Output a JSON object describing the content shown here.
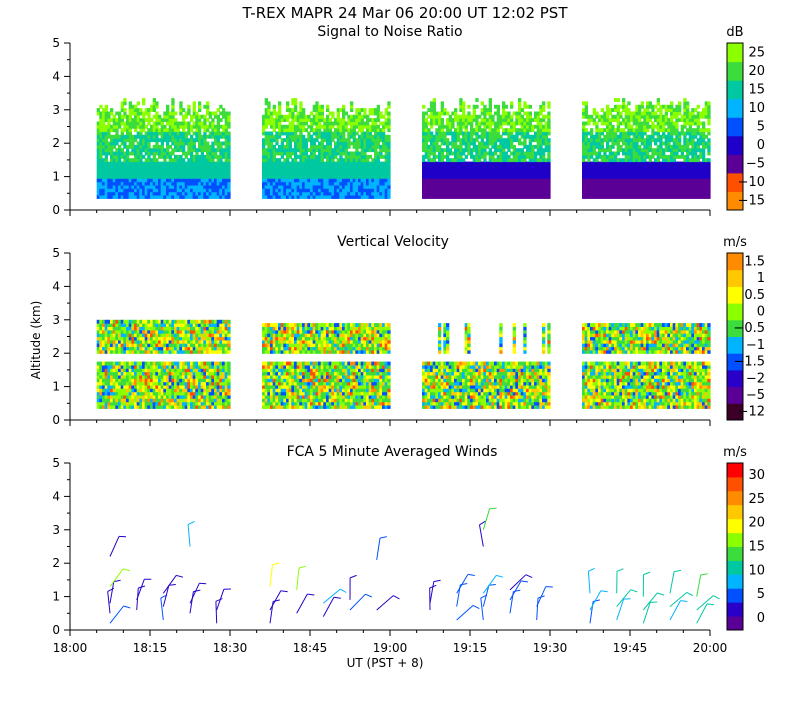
{
  "header": {
    "line1": "T-REX   MAPR 24 Mar 06   20:00 UT   12:02   PST"
  },
  "x_axis": {
    "label": "UT  (PST + 8)",
    "ticks": [
      "18:00",
      "18:15",
      "18:30",
      "18:45",
      "19:00",
      "19:15",
      "19:30",
      "19:45",
      "20:00"
    ],
    "range_minutes": [
      0,
      120
    ]
  },
  "colors": {
    "snr_scale": [
      "#8cff00",
      "#3cdc3c",
      "#00c8a0",
      "#00b4ff",
      "#0050ff",
      "#1e00c8",
      "#5a0096",
      "#ff5000",
      "#ff8c00",
      "#ffc800"
    ],
    "vv_scale": [
      "#3c0028",
      "#5a0096",
      "#2800c8",
      "#0050ff",
      "#00b4ff",
      "#3cdc3c",
      "#8cff00",
      "#ffff00",
      "#ffc800",
      "#ff8c00",
      "#ff5000",
      "#ff0000"
    ],
    "wind_scale": [
      "#5a0096",
      "#2800c8",
      "#0050ff",
      "#00b4ff",
      "#00c8a0",
      "#3cdc3c",
      "#8cff00",
      "#ffff00",
      "#ffc800",
      "#ff8c00",
      "#ff5000",
      "#ff0000"
    ]
  },
  "chart_data": [
    {
      "type": "heatmap",
      "title": "Signal to Noise Ratio",
      "ylabel": "",
      "ylim": [
        0,
        5
      ],
      "yticks": [
        "0",
        "1",
        "2",
        "3",
        "4",
        "5"
      ],
      "colorbar": {
        "unit": "dB",
        "ticks": [
          "25",
          "20",
          "15",
          "10",
          "5",
          "0",
          "−5",
          "−10",
          "−15"
        ]
      },
      "data_segments_ut": [
        [
          "18:05",
          "18:30"
        ],
        [
          "18:36",
          "19:00"
        ],
        [
          "19:06",
          "19:30"
        ],
        [
          "19:36",
          "20:00"
        ]
      ],
      "echo_top_km": 3.3
    },
    {
      "type": "heatmap",
      "title": "Vertical Velocity",
      "ylabel": "Altitude (km)",
      "ylim": [
        0,
        5
      ],
      "yticks": [
        "0",
        "1",
        "2",
        "3",
        "4",
        "5"
      ],
      "colorbar": {
        "unit": "m/s",
        "ticks": [
          "1.5",
          "1",
          "0.5",
          "0",
          "−0.5",
          "−1",
          "−1.5",
          "−2",
          "−5",
          "−12"
        ]
      },
      "data_segments_ut": [
        [
          "18:05",
          "18:30"
        ],
        [
          "18:36",
          "19:00"
        ],
        [
          "19:06",
          "19:30"
        ],
        [
          "19:36",
          "20:00"
        ]
      ]
    },
    {
      "type": "scatter",
      "title": "FCA 5 Minute Averaged Winds",
      "ylabel": "",
      "ylim": [
        0,
        5
      ],
      "yticks": [
        "0",
        "1",
        "2",
        "3",
        "4",
        "5"
      ],
      "colorbar": {
        "unit": "m/s",
        "ticks": [
          "30",
          "25",
          "20",
          "15",
          "10",
          "5",
          "0"
        ]
      },
      "barbs": [
        {
          "t": 7.5,
          "alt": 0.2,
          "speed": 5
        },
        {
          "t": 7.5,
          "alt": 0.5,
          "speed": 4
        },
        {
          "t": 7.5,
          "alt": 0.8,
          "speed": 3
        },
        {
          "t": 7.5,
          "alt": 2.2,
          "speed": 4
        },
        {
          "t": 7.5,
          "alt": 1.3,
          "speed": 15
        },
        {
          "t": 12.5,
          "alt": 0.6,
          "speed": 4
        },
        {
          "t": 12.5,
          "alt": 0.9,
          "speed": 3
        },
        {
          "t": 17.5,
          "alt": 0.3,
          "speed": 5
        },
        {
          "t": 17.5,
          "alt": 0.7,
          "speed": 4
        },
        {
          "t": 17.5,
          "alt": 1.1,
          "speed": 3
        },
        {
          "t": 22.5,
          "alt": 0.5,
          "speed": 4
        },
        {
          "t": 22.5,
          "alt": 0.8,
          "speed": 4
        },
        {
          "t": 22.5,
          "alt": 2.5,
          "speed": 9
        },
        {
          "t": 27.5,
          "alt": 0.2,
          "speed": 4
        },
        {
          "t": 27.5,
          "alt": 0.6,
          "speed": 3
        },
        {
          "t": 37.5,
          "alt": 0.2,
          "speed": 4
        },
        {
          "t": 37.5,
          "alt": 0.6,
          "speed": 4
        },
        {
          "t": 37.5,
          "alt": 1.3,
          "speed": 19
        },
        {
          "t": 42.5,
          "alt": 0.5,
          "speed": 4
        },
        {
          "t": 42.5,
          "alt": 1.2,
          "speed": 17
        },
        {
          "t": 47.5,
          "alt": 0.4,
          "speed": 4
        },
        {
          "t": 47.5,
          "alt": 0.8,
          "speed": 8
        },
        {
          "t": 52.5,
          "alt": 0.6,
          "speed": 5
        },
        {
          "t": 52.5,
          "alt": 0.9,
          "speed": 3
        },
        {
          "t": 57.5,
          "alt": 0.6,
          "speed": 4
        },
        {
          "t": 57.5,
          "alt": 2.1,
          "speed": 5
        },
        {
          "t": 67.5,
          "alt": 0.6,
          "speed": 4
        },
        {
          "t": 67.5,
          "alt": 0.8,
          "speed": 3
        },
        {
          "t": 72.5,
          "alt": 0.3,
          "speed": 5
        },
        {
          "t": 72.5,
          "alt": 0.7,
          "speed": 5
        },
        {
          "t": 72.5,
          "alt": 1.1,
          "speed": 6
        },
        {
          "t": 77.5,
          "alt": 0.3,
          "speed": 5
        },
        {
          "t": 77.5,
          "alt": 0.7,
          "speed": 6
        },
        {
          "t": 77.5,
          "alt": 1.1,
          "speed": 8
        },
        {
          "t": 77.5,
          "alt": 2.5,
          "speed": 4
        },
        {
          "t": 77.5,
          "alt": 3.0,
          "speed": 13
        },
        {
          "t": 82.5,
          "alt": 0.5,
          "speed": 6
        },
        {
          "t": 82.5,
          "alt": 0.9,
          "speed": 5
        },
        {
          "t": 82.5,
          "alt": 1.2,
          "speed": 4
        },
        {
          "t": 87.5,
          "alt": 0.3,
          "speed": 6
        },
        {
          "t": 87.5,
          "alt": 0.7,
          "speed": 5
        },
        {
          "t": 97.5,
          "alt": 0.2,
          "speed": 7
        },
        {
          "t": 97.5,
          "alt": 0.6,
          "speed": 8
        },
        {
          "t": 97.5,
          "alt": 1.1,
          "speed": 9
        },
        {
          "t": 102.5,
          "alt": 0.3,
          "speed": 9
        },
        {
          "t": 102.5,
          "alt": 0.7,
          "speed": 10
        },
        {
          "t": 102.5,
          "alt": 1.1,
          "speed": 11
        },
        {
          "t": 107.5,
          "alt": 0.2,
          "speed": 10
        },
        {
          "t": 107.5,
          "alt": 0.6,
          "speed": 11
        },
        {
          "t": 107.5,
          "alt": 1.0,
          "speed": 12
        },
        {
          "t": 112.5,
          "alt": 0.3,
          "speed": 9
        },
        {
          "t": 112.5,
          "alt": 0.7,
          "speed": 11
        },
        {
          "t": 112.5,
          "alt": 1.1,
          "speed": 12
        },
        {
          "t": 117.5,
          "alt": 0.2,
          "speed": 10
        },
        {
          "t": 117.5,
          "alt": 0.6,
          "speed": 11
        },
        {
          "t": 117.5,
          "alt": 1.0,
          "speed": 13
        }
      ]
    }
  ]
}
